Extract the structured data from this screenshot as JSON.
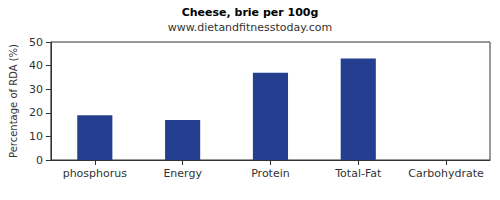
{
  "chart_data": {
    "type": "bar",
    "title": "Cheese, brie per 100g",
    "subtitle": "www.dietandfitnesstoday.com",
    "y_label": "Percentage of RDA (%)",
    "categories": [
      "phosphorus",
      "Energy",
      "Protein",
      "Total-Fat",
      "Carbohydrate"
    ],
    "values": [
      19,
      17,
      37,
      43,
      0
    ],
    "color": "#243f8f",
    "ylim": [
      0,
      50
    ],
    "yticks": [
      0,
      10,
      20,
      30,
      40,
      50
    ],
    "grid": false
  }
}
